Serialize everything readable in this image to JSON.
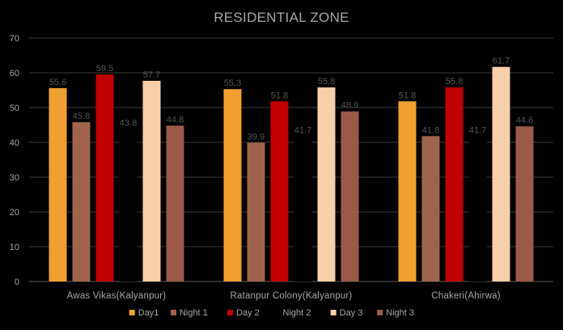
{
  "chart_data": {
    "type": "bar",
    "title": "RESIDENTIAL ZONE",
    "categories": [
      "Awas Vikas(Kalyanpur)",
      "Ratanpur Colony(Kalyanpur)",
      "Chakeri(Ahirwa)"
    ],
    "series": [
      {
        "name": "Day1",
        "color": "#f0a030",
        "values": [
          55.6,
          55.3,
          51.8
        ]
      },
      {
        "name": "Night 1",
        "color": "#a0644d",
        "values": [
          45.8,
          39.9,
          41.8
        ]
      },
      {
        "name": "Day 2",
        "color": "#c00000",
        "values": [
          59.5,
          51.8,
          55.8
        ]
      },
      {
        "name": "Night 2",
        "color": "#000000",
        "values": [
          43.8,
          41.7,
          41.7
        ]
      },
      {
        "name": "Day 3",
        "color": "#f8cfa8",
        "values": [
          57.7,
          55.8,
          61.7
        ]
      },
      {
        "name": "Night 3",
        "color": "#9b5a48",
        "values": [
          44.8,
          48.9,
          44.6
        ]
      }
    ],
    "ylim": [
      0,
      70
    ],
    "yticks": [
      0,
      10,
      20,
      30,
      40,
      50,
      60,
      70
    ],
    "grid": true,
    "legend": "bottom",
    "xlabel": "",
    "ylabel": ""
  }
}
